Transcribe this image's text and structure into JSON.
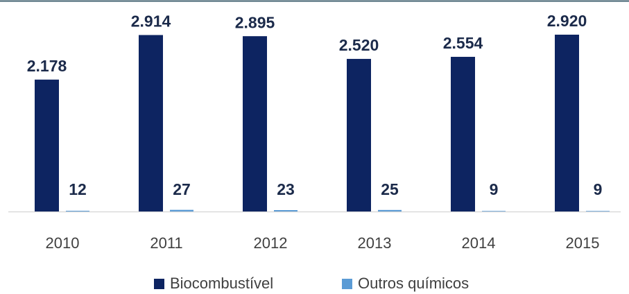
{
  "chart_data": {
    "type": "bar",
    "categories": [
      "2010",
      "2011",
      "2012",
      "2013",
      "2014",
      "2015"
    ],
    "series": [
      {
        "name": "Biocombustível",
        "color": "#0d2461",
        "values": [
          2178,
          2914,
          2895,
          2520,
          2554,
          2920
        ],
        "value_labels": [
          "2.178",
          "2.914",
          "2.895",
          "2.520",
          "2.554",
          "2.920"
        ]
      },
      {
        "name": "Outros químicos",
        "color": "#5b9bd5",
        "values": [
          12,
          27,
          23,
          25,
          9,
          9
        ]
      }
    ]
  }
}
